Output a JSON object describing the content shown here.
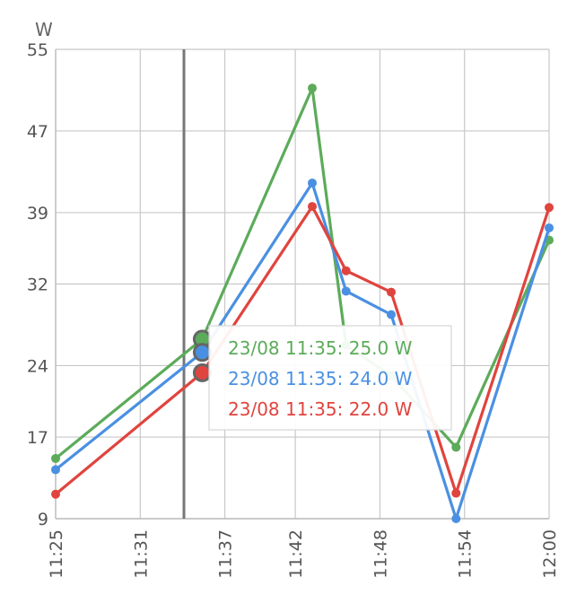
{
  "chart_data": {
    "type": "line",
    "ylabel": "W",
    "ylim": [
      9,
      55
    ],
    "y_ticks": [
      9,
      17,
      24,
      32,
      39,
      47,
      55
    ],
    "x_tick_labels": [
      "11:25",
      "11:31",
      "11:37",
      "11:42",
      "11:48",
      "11:54",
      "12:00"
    ],
    "x_tick_minutes": [
      0,
      6,
      12,
      17,
      23,
      29,
      35
    ],
    "x_range_minutes": [
      0,
      35
    ],
    "grid": true,
    "cursor_minute": 9.1,
    "series": [
      {
        "color": "#5cab5a",
        "x": [
          0,
          10.4,
          18.2,
          20.6,
          23.8,
          28.4,
          35
        ],
        "y": [
          14.9,
          26.6,
          51.2,
          26.0,
          23.0,
          16.0,
          36.3
        ]
      },
      {
        "color": "#4a90e2",
        "x": [
          0,
          10.4,
          18.2,
          20.6,
          23.8,
          28.4,
          35
        ],
        "y": [
          13.8,
          25.3,
          41.9,
          31.3,
          29.0,
          9.0,
          37.5
        ]
      },
      {
        "color": "#e0443e",
        "x": [
          0,
          10.4,
          18.2,
          20.6,
          23.8,
          28.4,
          35
        ],
        "y": [
          11.4,
          23.3,
          39.6,
          33.3,
          31.2,
          11.5,
          39.5
        ]
      }
    ],
    "tooltip": {
      "lines": [
        {
          "text": "23/08 11:35: 25.0 W",
          "color": "#5cab5a"
        },
        {
          "text": "23/08 11:35: 24.0 W",
          "color": "#4a90e2"
        },
        {
          "text": "23/08 11:35: 22.0 W",
          "color": "#e0443e"
        }
      ]
    }
  }
}
